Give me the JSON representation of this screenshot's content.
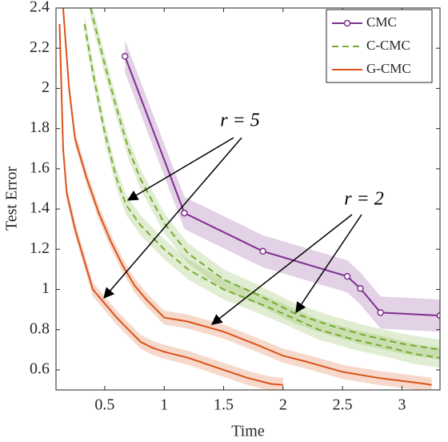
{
  "chart_data": {
    "type": "line",
    "xlabel": "Time",
    "ylabel": "Test Error",
    "xlim": [
      0.09,
      3.32
    ],
    "ylim": [
      0.5,
      2.4
    ],
    "xticks": [
      0.5,
      1,
      1.5,
      2,
      2.5,
      3
    ],
    "yticks": [
      0.6,
      0.8,
      1,
      1.2,
      1.4,
      1.6,
      1.8,
      2,
      2.2,
      2.4
    ],
    "legend": "upper right",
    "series": [
      {
        "name": "CMC",
        "color": "#7e2f8e",
        "style": "solid",
        "marker": true,
        "lines": [
          {
            "x": [
              0.67,
              1.17,
              1.83,
              2.54,
              2.65,
              2.82,
              3.32
            ],
            "values": [
              2.16,
              1.38,
              1.19,
              1.065,
              1.005,
              0.885,
              0.87
            ],
            "band": 0.08
          }
        ]
      },
      {
        "name": "C-CMC",
        "color": "#77ac30",
        "style": "dashed",
        "marker": false,
        "lines": [
          {
            "x": [
              0.33,
              0.4,
              0.5,
              0.6,
              0.68,
              0.8,
              1.0,
              1.2,
              1.5,
              1.8,
              2.0,
              2.3,
              2.6,
              2.9,
              3.1,
              3.32
            ],
            "values": [
              2.32,
              2.08,
              1.78,
              1.55,
              1.42,
              1.32,
              1.2,
              1.1,
              1.0,
              0.93,
              0.88,
              0.8,
              0.75,
              0.71,
              0.68,
              0.66
            ],
            "band": 0.05
          },
          {
            "x": [
              0.38,
              0.5,
              0.6,
              0.7,
              0.8,
              1.0,
              1.2,
              1.5,
              1.8,
              2.1,
              2.4,
              2.7,
              3.0,
              3.32
            ],
            "values": [
              2.4,
              2.12,
              1.9,
              1.7,
              1.55,
              1.33,
              1.18,
              1.05,
              0.97,
              0.88,
              0.82,
              0.77,
              0.73,
              0.7
            ],
            "band": 0.05
          }
        ]
      },
      {
        "name": "G-CMC",
        "color": "#d95319",
        "style": "solid",
        "marker": false,
        "lines": [
          {
            "x": [
              0.12,
              0.15,
              0.18,
              0.25,
              0.35,
              0.4,
              0.5,
              0.6,
              0.7,
              0.8,
              0.9,
              1.0,
              1.2,
              1.5,
              1.7,
              1.9,
              2.0
            ],
            "values": [
              2.32,
              1.7,
              1.48,
              1.3,
              1.1,
              1.0,
              0.93,
              0.86,
              0.8,
              0.74,
              0.71,
              0.69,
              0.66,
              0.6,
              0.56,
              0.53,
              0.525
            ],
            "band": 0.035
          },
          {
            "x": [
              0.15,
              0.2,
              0.25,
              0.35,
              0.45,
              0.55,
              0.65,
              0.75,
              0.85,
              1.0,
              1.2,
              1.5,
              1.8,
              2.0,
              2.2,
              2.5,
              2.8,
              3.0,
              3.2,
              3.25
            ],
            "values": [
              2.4,
              2.0,
              1.75,
              1.55,
              1.38,
              1.24,
              1.12,
              1.02,
              0.95,
              0.86,
              0.84,
              0.79,
              0.72,
              0.67,
              0.64,
              0.59,
              0.56,
              0.545,
              0.53,
              0.525
            ],
            "band": 0.035
          }
        ]
      }
    ],
    "annotations": [
      "r = 5",
      "r = 2"
    ]
  }
}
